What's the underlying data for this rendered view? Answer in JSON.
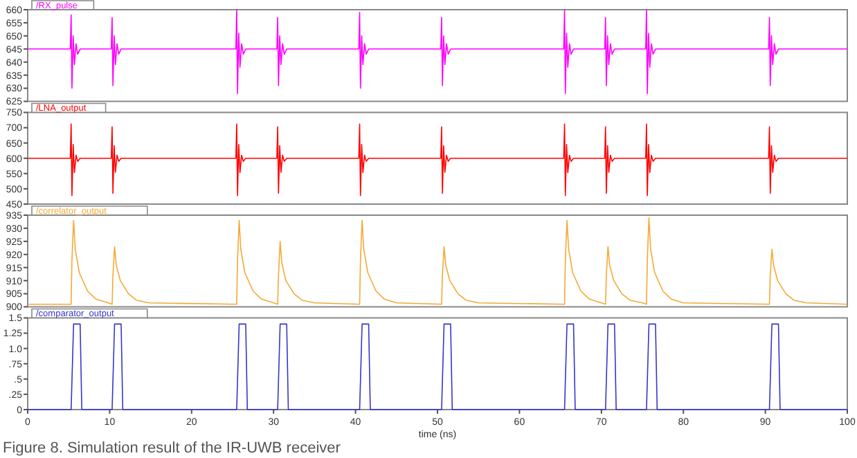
{
  "chart_data": [
    {
      "type": "line",
      "xlim": [
        0,
        100
      ],
      "ylim": [
        625,
        660
      ],
      "yticks": [
        625,
        630,
        635,
        640,
        645,
        650,
        655,
        660
      ],
      "tick_labels": "y",
      "grid": false,
      "line_style": "solid",
      "series": [
        {
          "name": "/RX_pulse",
          "color": "#ff00ff",
          "x": [
            0,
            5.2,
            5.3,
            5.4,
            5.55,
            5.7,
            5.9,
            6.1,
            6.4,
            10.2,
            10.3,
            10.4,
            10.55,
            10.7,
            10.9,
            11.1,
            11.4,
            25.4,
            25.5,
            25.6,
            25.75,
            25.9,
            26.1,
            26.3,
            26.6,
            30.4,
            30.5,
            30.6,
            30.75,
            30.9,
            31.1,
            31.3,
            31.6,
            40.4,
            40.5,
            40.6,
            40.75,
            40.9,
            41.1,
            41.3,
            41.6,
            50.4,
            50.5,
            50.6,
            50.75,
            50.9,
            51.1,
            51.3,
            51.6,
            65.4,
            65.5,
            65.6,
            65.75,
            65.9,
            66.1,
            66.3,
            66.6,
            70.4,
            70.5,
            70.6,
            70.75,
            70.9,
            71.1,
            71.3,
            71.6,
            75.4,
            75.5,
            75.6,
            75.75,
            75.9,
            76.1,
            76.3,
            76.6,
            90.4,
            90.5,
            90.6,
            90.75,
            90.9,
            91.1,
            91.3,
            91.6,
            100
          ],
          "values": [
            645,
            645,
            658,
            630,
            650,
            639,
            647,
            643,
            645,
            645,
            657,
            631,
            650,
            639,
            647,
            643,
            645,
            645,
            660,
            628,
            651,
            638,
            647,
            643,
            645,
            645,
            657,
            631,
            650,
            639,
            647,
            643,
            645,
            645,
            659,
            630,
            650,
            639,
            647,
            643,
            645,
            645,
            657,
            631,
            650,
            639,
            647,
            643,
            645,
            645,
            660,
            628,
            651,
            638,
            647,
            643,
            645,
            645,
            657,
            631,
            650,
            639,
            647,
            643,
            645,
            645,
            660,
            628,
            651,
            638,
            647,
            643,
            645,
            645,
            657,
            631,
            650,
            639,
            647,
            643,
            645,
            645
          ]
        }
      ]
    },
    {
      "type": "line",
      "xlim": [
        0,
        100
      ],
      "ylim": [
        450,
        750
      ],
      "yticks": [
        450,
        500,
        550,
        600,
        650,
        700,
        750
      ],
      "tick_labels": "y",
      "grid": false,
      "line_style": "solid",
      "series": [
        {
          "name": "/LNA_output",
          "color": "#ff0000",
          "x": [
            0,
            5.2,
            5.3,
            5.4,
            5.55,
            5.7,
            5.9,
            6.1,
            6.4,
            10.2,
            10.3,
            10.4,
            10.55,
            10.7,
            10.9,
            11.1,
            11.4,
            25.4,
            25.5,
            25.6,
            25.75,
            25.9,
            26.1,
            26.3,
            26.6,
            30.4,
            30.5,
            30.6,
            30.75,
            30.9,
            31.1,
            31.3,
            31.6,
            40.4,
            40.5,
            40.6,
            40.75,
            40.9,
            41.1,
            41.3,
            41.6,
            50.4,
            50.5,
            50.6,
            50.75,
            50.9,
            51.1,
            51.3,
            51.6,
            65.4,
            65.5,
            65.6,
            65.75,
            65.9,
            66.1,
            66.3,
            66.6,
            70.4,
            70.5,
            70.6,
            70.75,
            70.9,
            71.1,
            71.3,
            71.6,
            75.4,
            75.5,
            75.6,
            75.75,
            75.9,
            76.1,
            76.3,
            76.6,
            90.4,
            90.5,
            90.6,
            90.75,
            90.9,
            91.1,
            91.3,
            91.6,
            100
          ],
          "values": [
            600,
            600,
            712,
            478,
            645,
            553,
            610,
            590,
            600,
            600,
            703,
            485,
            641,
            554,
            610,
            590,
            600,
            600,
            712,
            478,
            645,
            553,
            610,
            590,
            600,
            600,
            703,
            485,
            641,
            554,
            610,
            590,
            600,
            600,
            712,
            478,
            645,
            553,
            610,
            590,
            600,
            600,
            703,
            485,
            641,
            554,
            610,
            590,
            600,
            600,
            712,
            478,
            645,
            553,
            610,
            590,
            600,
            600,
            703,
            485,
            641,
            554,
            610,
            590,
            600,
            600,
            712,
            478,
            645,
            553,
            610,
            590,
            600,
            600,
            703,
            485,
            641,
            554,
            610,
            590,
            600,
            600
          ]
        }
      ]
    },
    {
      "type": "line",
      "xlim": [
        0,
        100
      ],
      "ylim": [
        900,
        935
      ],
      "yticks": [
        900,
        905,
        910,
        915,
        920,
        925,
        930,
        935
      ],
      "tick_labels": "y",
      "grid": false,
      "line_style": "solid",
      "series": [
        {
          "name": "/correlator_output",
          "color": "#f5a833",
          "x": [
            0,
            5.3,
            5.4,
            5.6,
            5.8,
            6.3,
            7.3,
            8.3,
            9.8,
            10.3,
            10.4,
            10.6,
            10.8,
            11.3,
            12.3,
            13.3,
            14.8,
            25.5,
            25.6,
            25.8,
            26,
            26.5,
            27.5,
            28.5,
            30,
            30.5,
            30.6,
            30.8,
            31,
            31.5,
            32.5,
            33.5,
            35,
            40.5,
            40.6,
            40.8,
            41,
            41.5,
            42.5,
            43.5,
            45,
            50.5,
            50.6,
            50.8,
            51,
            51.5,
            52.5,
            53.5,
            55,
            65.5,
            65.6,
            65.8,
            66,
            66.5,
            67.5,
            68.5,
            70,
            70.5,
            70.6,
            70.8,
            71,
            71.5,
            72.5,
            73.5,
            75,
            75.5,
            75.6,
            75.8,
            76,
            76.5,
            77.5,
            78.5,
            80,
            90.5,
            90.6,
            90.8,
            91,
            91.5,
            92.5,
            93.5,
            95,
            100
          ],
          "values": [
            901,
            901,
            918,
            933,
            922,
            913,
            906,
            903,
            901.5,
            901,
            912,
            923,
            916,
            910,
            905,
            902.5,
            901.5,
            901,
            918,
            933,
            922,
            913,
            906,
            903,
            901.5,
            901,
            912,
            925,
            917,
            910,
            905,
            902.5,
            901.5,
            901,
            918,
            933,
            922,
            913,
            906,
            903,
            901.5,
            901,
            912,
            923,
            916,
            910,
            905,
            902.5,
            901.5,
            901,
            918,
            933,
            922,
            913,
            906,
            903,
            901.5,
            901,
            912,
            923,
            916,
            910,
            905,
            902.5,
            901.5,
            901,
            918,
            934,
            922,
            913,
            906,
            903,
            901.5,
            901,
            912,
            922,
            916,
            910,
            905,
            902.5,
            901.5,
            901
          ]
        }
      ]
    },
    {
      "type": "line",
      "xlim": [
        0,
        100
      ],
      "xticks": [
        0,
        10,
        20,
        30,
        40,
        50,
        60,
        70,
        80,
        90,
        100
      ],
      "ylim": [
        0,
        1.5
      ],
      "yticks": [
        0,
        {
          "value": 0.25,
          "label": ".25"
        },
        {
          "value": 0.5,
          "label": ".5"
        },
        {
          "value": 0.75,
          "label": ".75"
        },
        {
          "value": 1,
          "label": "1.0"
        },
        1.25,
        1.5
      ],
      "xlabel": "time (ns)",
      "grid": false,
      "line_style": "solid",
      "annotations": [
        "Figure 8. Simulation result of the IR-UWB receiver"
      ],
      "series": [
        {
          "name": "/comparator_output",
          "color": "#3535cc",
          "x": [
            0,
            5.3,
            5.6,
            6.4,
            6.6,
            10.3,
            10.6,
            11.4,
            11.6,
            25.5,
            25.8,
            26.6,
            26.8,
            30.5,
            30.8,
            31.6,
            31.8,
            40.5,
            40.8,
            41.6,
            41.8,
            50.5,
            50.8,
            51.6,
            51.8,
            65.5,
            65.8,
            66.6,
            66.8,
            70.5,
            70.8,
            71.6,
            71.8,
            75.5,
            75.8,
            76.6,
            76.8,
            90.5,
            90.8,
            91.6,
            91.8,
            100
          ],
          "values": [
            0,
            0,
            1.4,
            1.4,
            0,
            0,
            1.4,
            1.4,
            0,
            0,
            1.4,
            1.4,
            0,
            0,
            1.4,
            1.4,
            0,
            0,
            1.4,
            1.4,
            0,
            0,
            1.4,
            1.4,
            0,
            0,
            1.4,
            1.4,
            0,
            0,
            1.4,
            1.4,
            0,
            0,
            1.4,
            1.4,
            0,
            0,
            1.4,
            1.4,
            0,
            0
          ]
        }
      ]
    }
  ]
}
